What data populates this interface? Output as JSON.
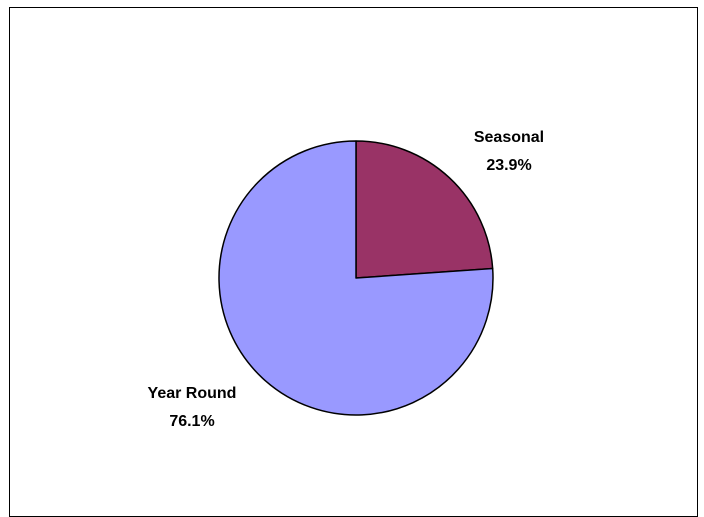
{
  "chart_data": {
    "type": "pie",
    "start_angle": 0,
    "direction": "clockwise",
    "slices": [
      {
        "label": "Seasonal",
        "value": 23.9,
        "value_label": "23.9%",
        "color": "#993366"
      },
      {
        "label": "Year Round",
        "value": 76.1,
        "value_label": "76.1%",
        "color": "#9999ff"
      }
    ],
    "border_color": "#000000",
    "legend": "none"
  }
}
